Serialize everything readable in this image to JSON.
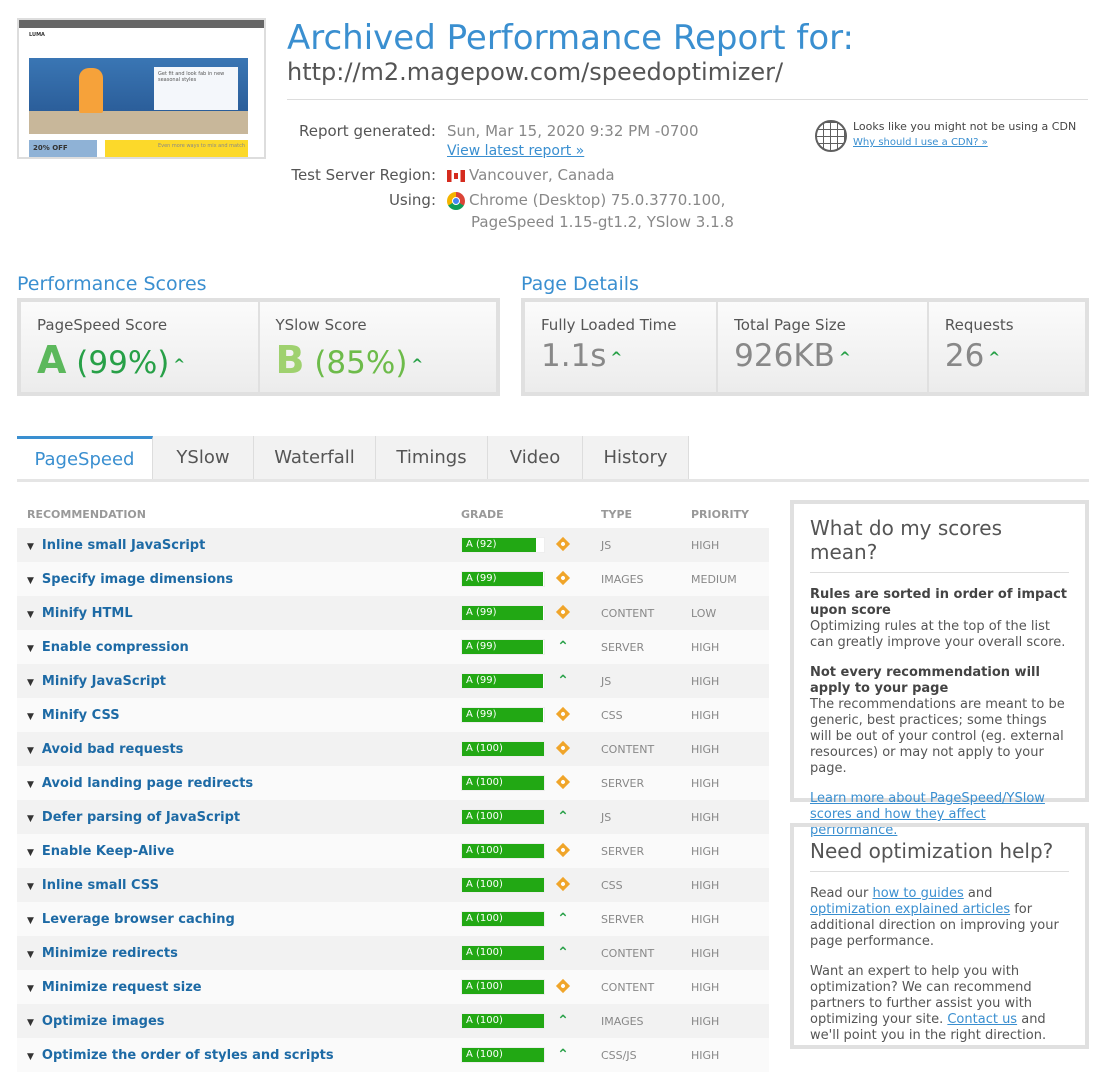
{
  "thumbnail": {
    "logo": "LUMA",
    "card": "Get fit and look fab in new seasonal styles",
    "promo1": "20% OFF",
    "promo2": "Even more ways to mix and match"
  },
  "header": {
    "title": "Archived Performance Report for:",
    "url": "http://m2.magepow.com/speedoptimizer/"
  },
  "meta": {
    "generated_label": "Report generated:",
    "generated_value": "Sun, Mar 15, 2020 9:32 PM -0700",
    "view_latest": "View latest report »",
    "region_label": "Test Server Region:",
    "region_value": "Vancouver, Canada",
    "using_label": "Using:",
    "using_line1": "Chrome (Desktop) 75.0.3770.100,",
    "using_line2": "PageSpeed 1.15-gt1.2, YSlow 3.1.8"
  },
  "cdn": {
    "text": "Looks like you might not be using a CDN",
    "link": "Why should I use a CDN? »"
  },
  "scores": {
    "heading": "Performance Scores",
    "pagespeed_label": "PageSpeed Score",
    "pagespeed_grade": "A",
    "pagespeed_pct": "(99%)",
    "yslow_label": "YSlow Score",
    "yslow_grade": "B",
    "yslow_pct": "(85%)"
  },
  "details": {
    "heading": "Page Details",
    "load_label": "Fully Loaded Time",
    "load_value": "1.1s",
    "size_label": "Total Page Size",
    "size_value": "926KB",
    "req_label": "Requests",
    "req_value": "26"
  },
  "tabs": [
    "PageSpeed",
    "YSlow",
    "Waterfall",
    "Timings",
    "Video",
    "History"
  ],
  "table": {
    "headers": {
      "rec": "RECOMMENDATION",
      "grade": "GRADE",
      "type": "TYPE",
      "priority": "PRIORITY"
    },
    "rows": [
      {
        "name": "Inline small JavaScript",
        "grade": "A (92)",
        "score": 92,
        "trend": "diamond",
        "type": "JS",
        "priority": "HIGH"
      },
      {
        "name": "Specify image dimensions",
        "grade": "A (99)",
        "score": 99,
        "trend": "diamond",
        "type": "IMAGES",
        "priority": "MEDIUM"
      },
      {
        "name": "Minify HTML",
        "grade": "A (99)",
        "score": 99,
        "trend": "diamond",
        "type": "CONTENT",
        "priority": "LOW"
      },
      {
        "name": "Enable compression",
        "grade": "A (99)",
        "score": 99,
        "trend": "up",
        "type": "SERVER",
        "priority": "HIGH"
      },
      {
        "name": "Minify JavaScript",
        "grade": "A (99)",
        "score": 99,
        "trend": "up",
        "type": "JS",
        "priority": "HIGH"
      },
      {
        "name": "Minify CSS",
        "grade": "A (99)",
        "score": 99,
        "trend": "diamond",
        "type": "CSS",
        "priority": "HIGH"
      },
      {
        "name": "Avoid bad requests",
        "grade": "A (100)",
        "score": 100,
        "trend": "diamond",
        "type": "CONTENT",
        "priority": "HIGH"
      },
      {
        "name": "Avoid landing page redirects",
        "grade": "A (100)",
        "score": 100,
        "trend": "diamond",
        "type": "SERVER",
        "priority": "HIGH"
      },
      {
        "name": "Defer parsing of JavaScript",
        "grade": "A (100)",
        "score": 100,
        "trend": "up",
        "type": "JS",
        "priority": "HIGH"
      },
      {
        "name": "Enable Keep-Alive",
        "grade": "A (100)",
        "score": 100,
        "trend": "diamond",
        "type": "SERVER",
        "priority": "HIGH"
      },
      {
        "name": "Inline small CSS",
        "grade": "A (100)",
        "score": 100,
        "trend": "diamond",
        "type": "CSS",
        "priority": "HIGH"
      },
      {
        "name": "Leverage browser caching",
        "grade": "A (100)",
        "score": 100,
        "trend": "up",
        "type": "SERVER",
        "priority": "HIGH"
      },
      {
        "name": "Minimize redirects",
        "grade": "A (100)",
        "score": 100,
        "trend": "up",
        "type": "CONTENT",
        "priority": "HIGH"
      },
      {
        "name": "Minimize request size",
        "grade": "A (100)",
        "score": 100,
        "trend": "diamond",
        "type": "CONTENT",
        "priority": "HIGH"
      },
      {
        "name": "Optimize images",
        "grade": "A (100)",
        "score": 100,
        "trend": "up",
        "type": "IMAGES",
        "priority": "HIGH"
      },
      {
        "name": "Optimize the order of styles and scripts",
        "grade": "A (100)",
        "score": 100,
        "trend": "up",
        "type": "CSS/JS",
        "priority": "HIGH"
      }
    ]
  },
  "scores_help": {
    "title": "What do my scores mean?",
    "h1": "Rules are sorted in order of impact upon score",
    "p1": "Optimizing rules at the top of the list can greatly improve your overall score.",
    "h2": "Not every recommendation will apply to your page",
    "p2": "The recommendations are meant to be generic, best practices; some things will be out of your control (eg. external resources) or may not apply to your page.",
    "link": "Learn more about PageSpeed/YSlow scores and how they affect performance."
  },
  "opt_help": {
    "title": "Need optimization help?",
    "p1a": "Read our ",
    "link1": "how to guides",
    "p1b": " and ",
    "link2": "optimization explained articles",
    "p1c": " for additional direction on improving your page performance.",
    "p2a": "Want an expert to help you with optimization? We can recommend partners to further assist you with optimizing your site. ",
    "link3": "Contact us",
    "p2b": " and we'll point you in the right direction."
  },
  "colors": {
    "accent": "#3a8fd0",
    "grade_green": "#22a814",
    "trend_up": "#27a047",
    "trend_neutral": "#f0a52a"
  }
}
